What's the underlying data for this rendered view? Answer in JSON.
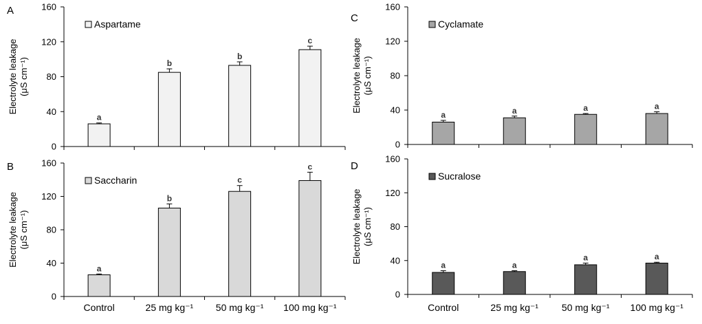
{
  "chart_data": [
    {
      "type": "bar",
      "panel_label": "A",
      "legend": "Aspartame",
      "ylabel": "Electrolyte leakage",
      "ylabel_unit": "(μS cm⁻¹)",
      "categories": [
        "Control",
        "25 mg kg⁻¹",
        "50 mg kg⁻¹",
        "100 mg kg⁻¹"
      ],
      "show_category_labels": false,
      "values": [
        26,
        85,
        93,
        111
      ],
      "errors": [
        1,
        4,
        4,
        4
      ],
      "letters": [
        "a",
        "b",
        "b",
        "c"
      ],
      "ylim": [
        0,
        160
      ],
      "yticks": [
        0,
        40,
        80,
        120,
        160
      ],
      "color": "#f2f2f2",
      "legend_position": "top-left",
      "grid": false
    },
    {
      "type": "bar",
      "panel_label": "B",
      "legend": "Saccharin",
      "ylabel": "Electrolyte leakage",
      "ylabel_unit": "(μS cm⁻¹)",
      "categories": [
        "Control",
        "25 mg kg⁻¹",
        "50 mg kg⁻¹",
        "100 mg kg⁻¹"
      ],
      "show_category_labels": true,
      "values": [
        26,
        106,
        126,
        139
      ],
      "errors": [
        1,
        5,
        7,
        10
      ],
      "letters": [
        "a",
        "b",
        "c",
        "c"
      ],
      "ylim": [
        0,
        160
      ],
      "yticks": [
        0,
        40,
        80,
        120,
        160
      ],
      "color": "#d9d9d9",
      "legend_position": "top-left",
      "grid": false
    },
    {
      "type": "bar",
      "panel_label": "C",
      "legend": "Cyclamate",
      "ylabel": "Electrolyte leakage",
      "ylabel_unit": "(μS  cm⁻¹)",
      "categories": [
        "Control",
        "25 mg kg⁻¹",
        "50 mg kg⁻¹",
        "100 mg kg⁻¹"
      ],
      "show_category_labels": false,
      "values": [
        26,
        31,
        35,
        36
      ],
      "errors": [
        2,
        2,
        1,
        2
      ],
      "letters": [
        "a",
        "a",
        "a",
        "a"
      ],
      "ylim": [
        0,
        160
      ],
      "yticks": [
        0,
        40,
        80,
        120,
        160
      ],
      "color": "#a6a6a6",
      "legend_position": "top-left",
      "grid": false
    },
    {
      "type": "bar",
      "panel_label": "D",
      "legend": "Sucralose",
      "ylabel": "Electrolyte leakage",
      "ylabel_unit": "(μS  cm⁻¹)",
      "categories": [
        "Control",
        "25 mg kg⁻¹",
        "50 mg kg⁻¹",
        "100 mg kg⁻¹"
      ],
      "show_category_labels": true,
      "values": [
        26,
        27,
        35,
        37
      ],
      "errors": [
        2,
        1,
        2,
        1
      ],
      "letters": [
        "a",
        "a",
        "a",
        "a"
      ],
      "ylim": [
        0,
        160
      ],
      "yticks": [
        0,
        40,
        80,
        120,
        160
      ],
      "color": "#595959",
      "legend_position": "top-left",
      "grid": false
    }
  ]
}
